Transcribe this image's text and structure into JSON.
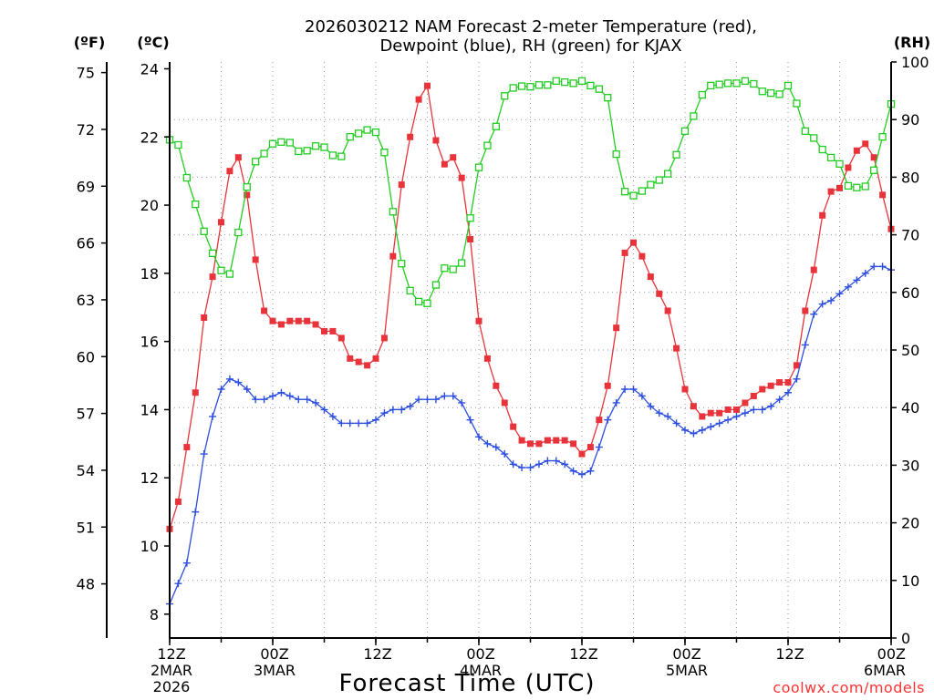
{
  "chart_data": {
    "type": "line",
    "title_lines": [
      "2026030212 NAM Forecast 2-meter Temperature (red),",
      "Dewpoint (blue), RH (green) for KJAX"
    ],
    "xlabel": "Forecast Time (UTC)",
    "credit": "coolwx.com/models",
    "grid": true,
    "x_unit": "forecast hour",
    "xlim": [
      0,
      84
    ],
    "x_ticks": [
      {
        "x": 0,
        "lines": [
          "12Z",
          "2MAR",
          "2026"
        ]
      },
      {
        "x": 12,
        "lines": [
          "00Z",
          "3MAR"
        ]
      },
      {
        "x": 24,
        "lines": [
          "12Z"
        ]
      },
      {
        "x": 36,
        "lines": [
          "00Z",
          "4MAR"
        ]
      },
      {
        "x": 48,
        "lines": [
          "12Z"
        ]
      },
      {
        "x": 60,
        "lines": [
          "00Z",
          "5MAR"
        ]
      },
      {
        "x": 72,
        "lines": [
          "12Z"
        ]
      },
      {
        "x": 84,
        "lines": [
          "00Z",
          "6MAR"
        ]
      }
    ],
    "axes": {
      "celsius": {
        "unit_label": "(ºC)",
        "ylim": [
          7.3,
          24.2
        ],
        "ticks": [
          8,
          10,
          12,
          14,
          16,
          18,
          20,
          22,
          24
        ]
      },
      "fahrenheit": {
        "unit_label": "(ºF)",
        "ticks": [
          48,
          51,
          54,
          57,
          60,
          63,
          66,
          69,
          72,
          75
        ]
      },
      "rh": {
        "unit_label": "(RH)",
        "ylim": [
          0,
          100
        ],
        "ticks": [
          0,
          10,
          20,
          30,
          40,
          50,
          60,
          70,
          80,
          90,
          100
        ]
      }
    },
    "series": [
      {
        "color": "#e8333a",
        "marker": "filled-square",
        "axis": "celsius",
        "points": [
          [
            0,
            10.5
          ],
          [
            1,
            11.3
          ],
          [
            2,
            12.9
          ],
          [
            3,
            14.5
          ],
          [
            4,
            16.7
          ],
          [
            5,
            17.9
          ],
          [
            6,
            19.5
          ],
          [
            7,
            21.0
          ],
          [
            8,
            21.4
          ],
          [
            9,
            20.3
          ],
          [
            10,
            18.4
          ],
          [
            11,
            16.9
          ],
          [
            12,
            16.6
          ],
          [
            13,
            16.5
          ],
          [
            14,
            16.6
          ],
          [
            15,
            16.6
          ],
          [
            16,
            16.6
          ],
          [
            17,
            16.5
          ],
          [
            18,
            16.3
          ],
          [
            19,
            16.3
          ],
          [
            20,
            16.1
          ],
          [
            21,
            15.5
          ],
          [
            22,
            15.4
          ],
          [
            23,
            15.3
          ],
          [
            24,
            15.5
          ],
          [
            25,
            16.1
          ],
          [
            26,
            18.5
          ],
          [
            27,
            20.6
          ],
          [
            28,
            22.0
          ],
          [
            29,
            23.1
          ],
          [
            30,
            23.5
          ],
          [
            31,
            21.9
          ],
          [
            32,
            21.2
          ],
          [
            33,
            21.4
          ],
          [
            34,
            20.8
          ],
          [
            35,
            19.0
          ],
          [
            36,
            16.6
          ],
          [
            37,
            15.5
          ],
          [
            38,
            14.7
          ],
          [
            39,
            14.2
          ],
          [
            40,
            13.5
          ],
          [
            41,
            13.1
          ],
          [
            42,
            13.0
          ],
          [
            43,
            13.0
          ],
          [
            44,
            13.1
          ],
          [
            45,
            13.1
          ],
          [
            46,
            13.1
          ],
          [
            47,
            13.0
          ],
          [
            48,
            12.7
          ],
          [
            49,
            12.9
          ],
          [
            50,
            13.7
          ],
          [
            51,
            14.7
          ],
          [
            52,
            16.4
          ],
          [
            53,
            18.6
          ],
          [
            54,
            18.9
          ],
          [
            55,
            18.5
          ],
          [
            56,
            17.9
          ],
          [
            57,
            17.4
          ],
          [
            58,
            16.9
          ],
          [
            59,
            15.8
          ],
          [
            60,
            14.6
          ],
          [
            61,
            14.1
          ],
          [
            62,
            13.8
          ],
          [
            63,
            13.9
          ],
          [
            64,
            13.9
          ],
          [
            65,
            14.0
          ],
          [
            66,
            14.0
          ],
          [
            67,
            14.2
          ],
          [
            68,
            14.4
          ],
          [
            69,
            14.6
          ],
          [
            70,
            14.7
          ],
          [
            71,
            14.8
          ],
          [
            72,
            14.8
          ],
          [
            73,
            15.3
          ],
          [
            74,
            16.9
          ],
          [
            75,
            18.1
          ],
          [
            76,
            19.7
          ],
          [
            77,
            20.4
          ],
          [
            78,
            20.5
          ],
          [
            79,
            21.1
          ],
          [
            80,
            21.6
          ],
          [
            81,
            21.8
          ],
          [
            82,
            21.4
          ],
          [
            83,
            20.3
          ],
          [
            84,
            19.3
          ]
        ]
      },
      {
        "color": "#2d4fe0",
        "marker": "plus",
        "axis": "celsius",
        "points": [
          [
            0,
            8.3
          ],
          [
            1,
            8.9
          ],
          [
            2,
            9.5
          ],
          [
            3,
            11.0
          ],
          [
            4,
            12.7
          ],
          [
            5,
            13.8
          ],
          [
            6,
            14.6
          ],
          [
            7,
            14.9
          ],
          [
            8,
            14.8
          ],
          [
            9,
            14.6
          ],
          [
            10,
            14.3
          ],
          [
            11,
            14.3
          ],
          [
            12,
            14.4
          ],
          [
            13,
            14.5
          ],
          [
            14,
            14.4
          ],
          [
            15,
            14.3
          ],
          [
            16,
            14.3
          ],
          [
            17,
            14.2
          ],
          [
            18,
            14.0
          ],
          [
            19,
            13.8
          ],
          [
            20,
            13.6
          ],
          [
            21,
            13.6
          ],
          [
            22,
            13.6
          ],
          [
            23,
            13.6
          ],
          [
            24,
            13.7
          ],
          [
            25,
            13.9
          ],
          [
            26,
            14.0
          ],
          [
            27,
            14.0
          ],
          [
            28,
            14.1
          ],
          [
            29,
            14.3
          ],
          [
            30,
            14.3
          ],
          [
            31,
            14.3
          ],
          [
            32,
            14.4
          ],
          [
            33,
            14.4
          ],
          [
            34,
            14.2
          ],
          [
            35,
            13.7
          ],
          [
            36,
            13.2
          ],
          [
            37,
            13.0
          ],
          [
            38,
            12.9
          ],
          [
            39,
            12.7
          ],
          [
            40,
            12.4
          ],
          [
            41,
            12.3
          ],
          [
            42,
            12.3
          ],
          [
            43,
            12.4
          ],
          [
            44,
            12.5
          ],
          [
            45,
            12.5
          ],
          [
            46,
            12.4
          ],
          [
            47,
            12.2
          ],
          [
            48,
            12.1
          ],
          [
            49,
            12.2
          ],
          [
            50,
            12.9
          ],
          [
            51,
            13.7
          ],
          [
            52,
            14.2
          ],
          [
            53,
            14.6
          ],
          [
            54,
            14.6
          ],
          [
            55,
            14.4
          ],
          [
            56,
            14.1
          ],
          [
            57,
            13.9
          ],
          [
            58,
            13.8
          ],
          [
            59,
            13.6
          ],
          [
            60,
            13.4
          ],
          [
            61,
            13.3
          ],
          [
            62,
            13.4
          ],
          [
            63,
            13.5
          ],
          [
            64,
            13.6
          ],
          [
            65,
            13.7
          ],
          [
            66,
            13.8
          ],
          [
            67,
            13.9
          ],
          [
            68,
            14.0
          ],
          [
            69,
            14.0
          ],
          [
            70,
            14.1
          ],
          [
            71,
            14.3
          ],
          [
            72,
            14.5
          ],
          [
            73,
            14.9
          ],
          [
            74,
            15.9
          ],
          [
            75,
            16.8
          ],
          [
            76,
            17.1
          ],
          [
            77,
            17.2
          ],
          [
            78,
            17.4
          ],
          [
            79,
            17.6
          ],
          [
            80,
            17.8
          ],
          [
            81,
            18.0
          ],
          [
            82,
            18.2
          ],
          [
            83,
            18.2
          ],
          [
            84,
            18.1
          ]
        ]
      },
      {
        "color": "#22cc22",
        "marker": "open-square",
        "axis": "rh",
        "points": [
          [
            0,
            86.5
          ],
          [
            1,
            85.6
          ],
          [
            2,
            79.9
          ],
          [
            3,
            75.3
          ],
          [
            4,
            70.6
          ],
          [
            5,
            66.8
          ],
          [
            6,
            63.8
          ],
          [
            7,
            63.2
          ],
          [
            8,
            70.4
          ],
          [
            9,
            78.3
          ],
          [
            10,
            82.7
          ],
          [
            11,
            84.1
          ],
          [
            12,
            85.8
          ],
          [
            13,
            86.1
          ],
          [
            14,
            86.0
          ],
          [
            15,
            84.5
          ],
          [
            16,
            84.6
          ],
          [
            17,
            85.4
          ],
          [
            18,
            85.2
          ],
          [
            19,
            83.8
          ],
          [
            20,
            83.6
          ],
          [
            21,
            87.0
          ],
          [
            22,
            87.6
          ],
          [
            23,
            88.2
          ],
          [
            24,
            87.8
          ],
          [
            25,
            84.3
          ],
          [
            26,
            74.0
          ],
          [
            27,
            65.0
          ],
          [
            28,
            60.3
          ],
          [
            29,
            58.4
          ],
          [
            30,
            58.1
          ],
          [
            31,
            61.3
          ],
          [
            32,
            64.2
          ],
          [
            33,
            64.0
          ],
          [
            34,
            65.1
          ],
          [
            35,
            72.9
          ],
          [
            36,
            81.7
          ],
          [
            37,
            85.5
          ],
          [
            38,
            88.8
          ],
          [
            39,
            94.1
          ],
          [
            40,
            95.5
          ],
          [
            41,
            95.8
          ],
          [
            42,
            95.7
          ],
          [
            43,
            96.0
          ],
          [
            44,
            96.0
          ],
          [
            45,
            96.7
          ],
          [
            46,
            96.5
          ],
          [
            47,
            96.3
          ],
          [
            48,
            96.7
          ],
          [
            49,
            95.9
          ],
          [
            50,
            95.3
          ],
          [
            51,
            93.8
          ],
          [
            52,
            84.0
          ],
          [
            53,
            77.5
          ],
          [
            54,
            76.8
          ],
          [
            55,
            77.6
          ],
          [
            56,
            78.7
          ],
          [
            57,
            79.5
          ],
          [
            58,
            80.6
          ],
          [
            59,
            83.9
          ],
          [
            60,
            88.0
          ],
          [
            61,
            90.6
          ],
          [
            62,
            94.3
          ],
          [
            63,
            95.9
          ],
          [
            64,
            96.1
          ],
          [
            65,
            96.3
          ],
          [
            66,
            96.3
          ],
          [
            67,
            96.7
          ],
          [
            68,
            96.2
          ],
          [
            69,
            94.9
          ],
          [
            70,
            94.6
          ],
          [
            71,
            94.4
          ],
          [
            72,
            95.9
          ],
          [
            73,
            92.8
          ],
          [
            74,
            88.0
          ],
          [
            75,
            86.8
          ],
          [
            76,
            84.8
          ],
          [
            77,
            83.4
          ],
          [
            78,
            82.3
          ],
          [
            79,
            78.5
          ],
          [
            80,
            78.2
          ],
          [
            81,
            78.4
          ],
          [
            82,
            81.2
          ],
          [
            83,
            87.0
          ],
          [
            84,
            92.7
          ]
        ]
      }
    ]
  }
}
